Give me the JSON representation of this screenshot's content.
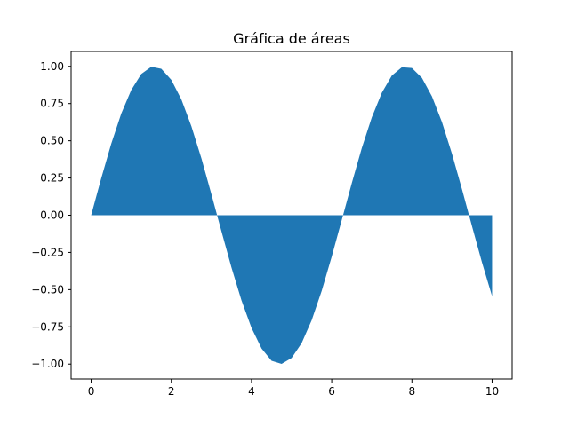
{
  "chart_data": {
    "type": "area",
    "title": "Gráfica de áreas",
    "xlabel": "",
    "ylabel": "",
    "xlim": [
      -0.5,
      10.5
    ],
    "ylim": [
      -1.1,
      1.1
    ],
    "grid": false,
    "x_ticks": [
      0,
      2,
      4,
      6,
      8,
      10
    ],
    "x_tick_labels": [
      "0",
      "2",
      "4",
      "6",
      "8",
      "10"
    ],
    "y_ticks": [
      1.0,
      0.75,
      0.5,
      0.25,
      0.0,
      -0.25,
      -0.5,
      -0.75,
      -1.0
    ],
    "y_tick_labels": [
      "1.00",
      "0.75",
      "0.50",
      "0.25",
      "0.00",
      "−0.25",
      "−0.50",
      "−0.75",
      "−1.00"
    ],
    "series": [
      {
        "color": "#1f77b4",
        "baseline": 0,
        "x": [
          0,
          0.25,
          0.5,
          0.75,
          1.0,
          1.25,
          1.5,
          1.75,
          2.0,
          2.25,
          2.5,
          2.75,
          3.0,
          3.25,
          3.5,
          3.75,
          4.0,
          4.25,
          4.5,
          4.75,
          5.0,
          5.25,
          5.5,
          5.75,
          6.0,
          6.25,
          6.5,
          6.75,
          7.0,
          7.25,
          7.5,
          7.75,
          8.0,
          8.25,
          8.5,
          8.75,
          9.0,
          9.25,
          9.5,
          9.75,
          10.0
        ],
        "y": [
          0,
          0.247,
          0.479,
          0.682,
          0.841,
          0.949,
          0.997,
          0.984,
          0.909,
          0.778,
          0.598,
          0.382,
          0.141,
          -0.108,
          -0.351,
          -0.572,
          -0.757,
          -0.895,
          -0.978,
          -0.999,
          -0.959,
          -0.859,
          -0.706,
          -0.508,
          -0.279,
          -0.033,
          0.215,
          0.451,
          0.657,
          0.823,
          0.938,
          0.994,
          0.989,
          0.923,
          0.798,
          0.625,
          0.412,
          0.174,
          -0.075,
          -0.319,
          -0.544
        ]
      }
    ]
  }
}
